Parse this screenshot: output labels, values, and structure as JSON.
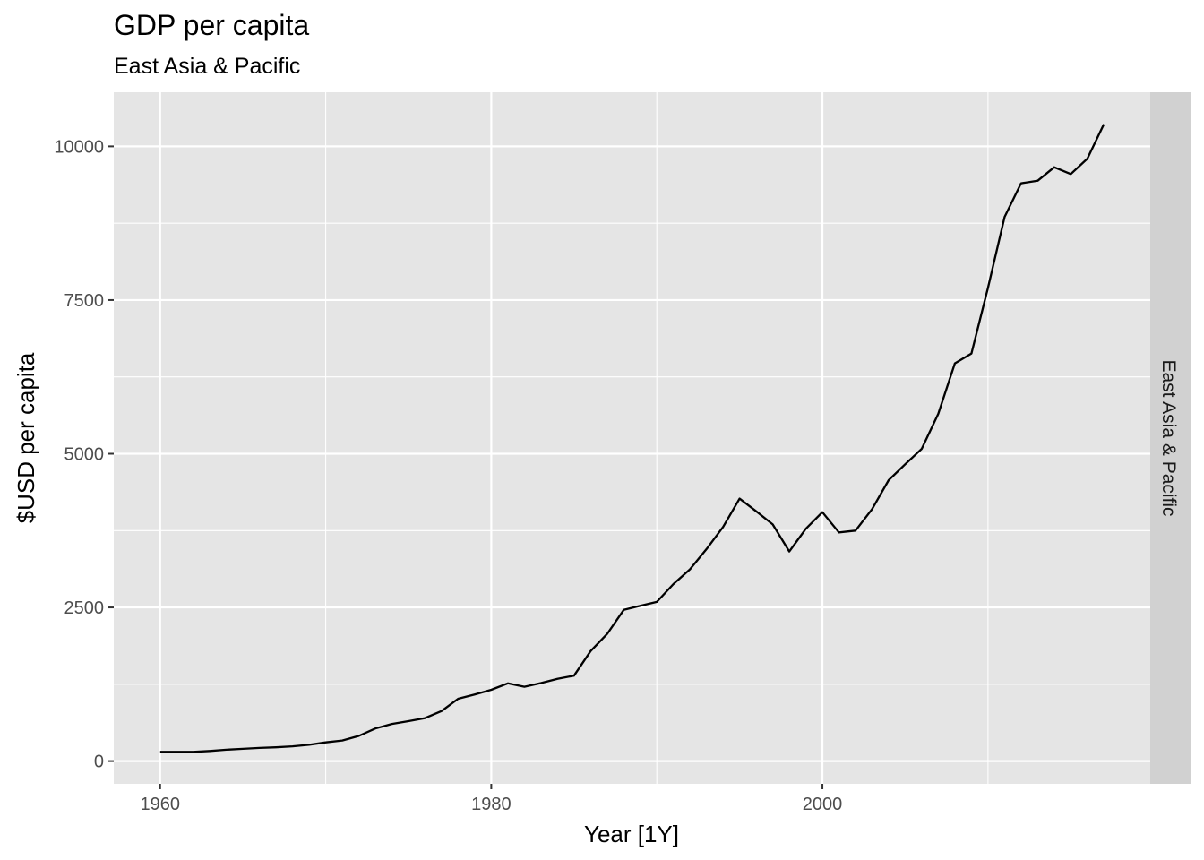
{
  "chart_data": {
    "type": "line",
    "title": "GDP per capita",
    "subtitle": "East Asia & Pacific",
    "xlabel": "Year [1Y]",
    "ylabel": "$USD per capita",
    "facet_label": "East Asia & Pacific",
    "xlim": [
      1957.2,
      2019.8
    ],
    "ylim": [
      -370,
      10880
    ],
    "x_ticks": [
      1960,
      1980,
      2000
    ],
    "x_minor_ticks": [
      1970,
      1990,
      2010
    ],
    "y_ticks": [
      0,
      2500,
      5000,
      7500,
      10000
    ],
    "y_minor_ticks": [
      1250,
      3750,
      6250,
      8750
    ],
    "grid": true,
    "legend": "none",
    "colors": {
      "panel": "#e5e5e5",
      "grid": "#ffffff",
      "strip": "#d1d1d1",
      "line": "#000000"
    },
    "series": [
      {
        "x": [
          1960,
          1961,
          1962,
          1963,
          1964,
          1965,
          1966,
          1967,
          1968,
          1969,
          1970,
          1971,
          1972,
          1973,
          1974,
          1975,
          1976,
          1977,
          1978,
          1979,
          1980,
          1981,
          1982,
          1983,
          1984,
          1985,
          1986,
          1987,
          1988,
          1989,
          1990,
          1991,
          1992,
          1993,
          1994,
          1995,
          1996,
          1997,
          1998,
          1999,
          2000,
          2001,
          2002,
          2003,
          2004,
          2005,
          2006,
          2007,
          2008,
          2009,
          2010,
          2011,
          2012,
          2013,
          2014,
          2015,
          2016,
          2017
        ],
        "values": [
          150,
          150,
          150,
          165,
          185,
          200,
          215,
          225,
          240,
          265,
          305,
          335,
          410,
          530,
          605,
          650,
          700,
          815,
          1015,
          1085,
          1160,
          1265,
          1210,
          1270,
          1340,
          1390,
          1790,
          2070,
          2460,
          2525,
          2590,
          2880,
          3120,
          3450,
          3810,
          4270,
          4065,
          3850,
          3410,
          3780,
          4050,
          3720,
          3750,
          4100,
          4570,
          4830,
          5080,
          5650,
          6470,
          6630,
          7700,
          8850,
          9400,
          9440,
          9660,
          9550,
          9800,
          10360
        ]
      }
    ]
  }
}
